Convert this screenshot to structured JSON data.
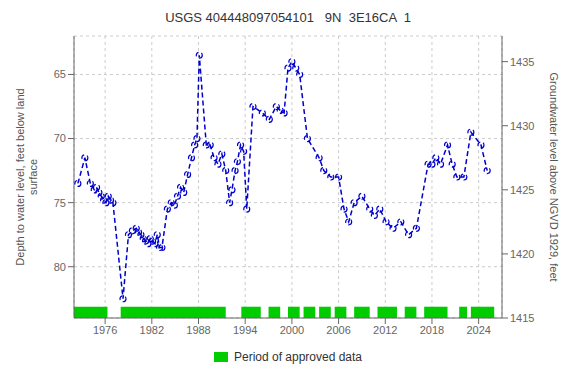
{
  "chart_data": {
    "type": "line",
    "title": "USGS 404448097054101   9N  3E16CA  1",
    "ylabel": "Depth to water level, feet below land\nsurface",
    "y2label": "Groundwater level above NGVD 1929, feet",
    "x": [
      1972.5,
      1973.4,
      1974.1,
      1974.6,
      1974.9,
      1975.2,
      1975.5,
      1975.8,
      1976.1,
      1976.4,
      1976.7,
      1977.0,
      1978.3,
      1979.0,
      1979.5,
      1980.0,
      1980.3,
      1980.6,
      1980.9,
      1981.2,
      1981.5,
      1981.8,
      1982.1,
      1982.4,
      1982.7,
      1983.0,
      1983.3,
      1984.0,
      1984.5,
      1984.9,
      1985.3,
      1985.7,
      1986.1,
      1986.6,
      1987.1,
      1987.5,
      1987.8,
      1988.1,
      1989.0,
      1989.5,
      1990.0,
      1990.5,
      1991.0,
      1991.5,
      1992.0,
      1992.3,
      1992.7,
      1993.0,
      1993.4,
      1993.8,
      1994.2,
      1995.0,
      1996.2,
      1997.1,
      1998.0,
      1998.5,
      1999.0,
      1999.5,
      2000.0,
      2000.5,
      2001.0,
      2002.0,
      2003.5,
      2004.1,
      2005.0,
      2006.0,
      2006.7,
      2007.3,
      2008.0,
      2009.0,
      2010.0,
      2010.6,
      2011.3,
      2012.1,
      2013.0,
      2014.0,
      2015.0,
      2016.0,
      2017.5,
      2018.0,
      2018.5,
      2019.1,
      2020.0,
      2020.6,
      2021.2,
      2022.1,
      2023.0,
      2024.3,
      2025.1
    ],
    "values": [
      73.5,
      71.5,
      73.5,
      74.0,
      73.8,
      74.2,
      74.5,
      74.8,
      75.0,
      74.5,
      74.8,
      75.0,
      82.5,
      77.5,
      77.2,
      77.0,
      77.3,
      77.5,
      77.8,
      78.0,
      78.2,
      77.8,
      78.0,
      78.2,
      77.5,
      78.5,
      78.5,
      75.5,
      75.0,
      75.2,
      74.5,
      73.8,
      74.2,
      72.8,
      71.5,
      70.5,
      70.0,
      63.5,
      70.5,
      70.5,
      71.5,
      72.0,
      71.2,
      72.5,
      75.0,
      74.0,
      72.5,
      71.8,
      70.5,
      71.0,
      75.5,
      67.5,
      68.0,
      68.5,
      67.5,
      67.8,
      68.0,
      64.5,
      64.0,
      64.5,
      65.0,
      70.0,
      71.5,
      72.5,
      73.0,
      73.0,
      75.5,
      76.5,
      75.0,
      74.5,
      75.5,
      76.0,
      75.5,
      76.5,
      77.0,
      76.5,
      77.5,
      77.0,
      72.0,
      72.0,
      71.5,
      72.0,
      70.5,
      72.0,
      73.0,
      73.0,
      69.5,
      70.5,
      72.5
    ],
    "color": "#0000cc",
    "marker": "circle",
    "line_style": "dashed",
    "ylim": [
      84,
      62
    ],
    "yticks": [
      65,
      70,
      75,
      80
    ],
    "y2lim": [
      1415,
      1437
    ],
    "y2ticks": [
      1415,
      1420,
      1425,
      1430,
      1435
    ],
    "xlim": [
      1972,
      2027
    ],
    "xticks": [
      1976,
      1982,
      1988,
      1994,
      2000,
      2006,
      2012,
      2018,
      2024
    ],
    "grid": true,
    "legend": "bottom",
    "approved_periods": {
      "name": "Period of approved data",
      "color": "#00cc00",
      "start": [
        1972.0,
        1978.0,
        1993.5,
        1997.0,
        1999.5,
        2001.5,
        2003.5,
        2005.5,
        2008.0,
        2011.0,
        2014.5,
        2017.0,
        2021.5,
        2023.0
      ],
      "width": [
        4.3,
        13.5,
        2.5,
        1.5,
        1.5,
        1.5,
        1.5,
        1.5,
        2.0,
        2.5,
        1.5,
        3.0,
        1.0,
        3.0
      ]
    }
  }
}
